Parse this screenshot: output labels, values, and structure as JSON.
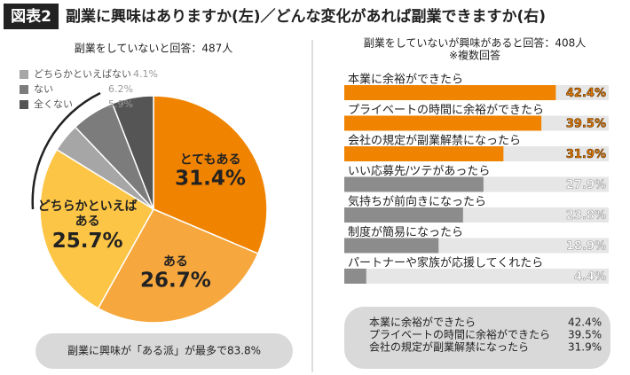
{
  "header": {
    "badge": "図表2",
    "title": "副業に興味はありますか(左)／どんな変化があれば副業できますか(右)"
  },
  "chart_data": [
    {
      "type": "pie",
      "subtitle": "副業をしていないと回答：487人",
      "categories": [
        "とてもある",
        "ある",
        "どちらかといえばある",
        "どちらかといえばない",
        "ない",
        "全くない"
      ],
      "values": [
        31.4,
        26.7,
        25.7,
        4.1,
        6.2,
        5.9
      ],
      "value_labels": [
        "31.4%",
        "26.7%",
        "25.7%",
        "4.1%",
        "6.2%",
        "5.9%"
      ],
      "colors": [
        "#f08300",
        "#f6a73e",
        "#fcc545",
        "#a6a6a6",
        "#7c7c7c",
        "#555555"
      ],
      "legend": "top-left",
      "note": "副業に興味が「ある派」が最多で83.8%"
    },
    {
      "type": "bar",
      "orientation": "horizontal",
      "subtitle": "副業をしていないが興味があると回答：408人",
      "annotation": "※複数回答",
      "categories": [
        "本業に余裕ができたら",
        "プライベートの時間に余裕ができたら",
        "会社の規定が副業解禁になったら",
        "いい応募先/ツテがあったら",
        "気持ちが前向きになったら",
        "制度が簡易になったら",
        "パートナーや家族が応援してくれたら"
      ],
      "values": [
        42.4,
        39.5,
        31.9,
        27.9,
        23.8,
        18.9,
        4.4
      ],
      "value_labels": [
        "42.4%",
        "39.5%",
        "31.9%",
        "27.9%",
        "23.8%",
        "18.9%",
        "4.4%"
      ],
      "colors": [
        "#f08300",
        "#f08300",
        "#f08300",
        "#8c8c8c",
        "#8c8c8c",
        "#8c8c8c",
        "#8c8c8c"
      ],
      "xlim": [
        0,
        53
      ]
    }
  ]
}
